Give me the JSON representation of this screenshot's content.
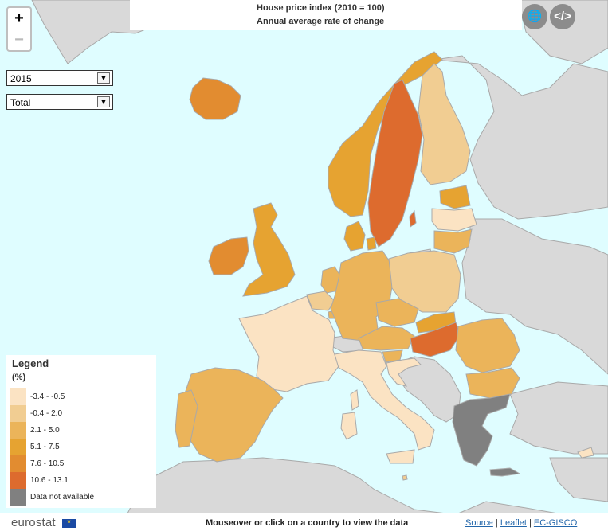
{
  "title": {
    "line1": "House price index (2010 = 100)",
    "line2": "Annual average rate of change"
  },
  "controls": {
    "zoom_in": "+",
    "zoom_out": "−",
    "year": "2015",
    "category": "Total"
  },
  "legend": {
    "title": "Legend",
    "unit": "(%)",
    "classes": [
      {
        "label": "-3.4 - -0.5",
        "color": "#fbe3c3"
      },
      {
        "label": "-0.4 - 2.0",
        "color": "#f1cd92"
      },
      {
        "label": "2.1 - 5.0",
        "color": "#ebb45a"
      },
      {
        "label": "5.1 - 7.5",
        "color": "#e6a331"
      },
      {
        "label": "7.6 - 10.5",
        "color": "#e28c30"
      },
      {
        "label": "10.6 - 13.1",
        "color": "#dd6b2e"
      },
      {
        "label": "Data not available",
        "color": "#808080"
      }
    ]
  },
  "footer": {
    "logo": "eurostat",
    "message": "Mouseover or click on a country to view the data",
    "links": [
      "Source",
      "Leaflet",
      "EC-GISCO"
    ],
    "separator": "|"
  },
  "map_colors": {
    "sea": "#dffdff",
    "non_eu": "#d9d9d9",
    "border": "#a9a9a9"
  }
}
